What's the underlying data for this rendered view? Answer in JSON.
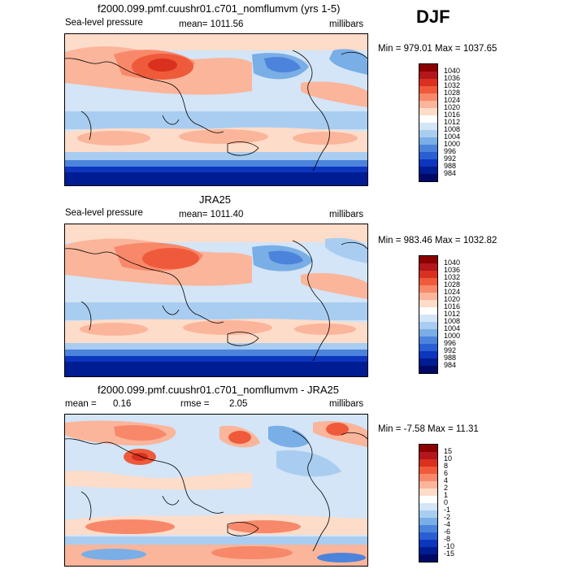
{
  "season": "DJF",
  "panels": [
    {
      "title": "f2000.099.pmf.cuushr01.c701_nomflumvm (yrs 1-5)",
      "variable": "Sea-level pressure",
      "mean": "mean= 1011.56",
      "units": "millibars",
      "minmax": "Min = 979.01 Max = 1037.65"
    },
    {
      "title": "JRA25",
      "variable": "Sea-level pressure",
      "mean": "mean= 1011.40",
      "units": "millibars",
      "minmax": "Min = 983.46 Max = 1032.82"
    },
    {
      "title": "f2000.099.pmf.cuushr01.c701_nomflumvm - JRA25",
      "mean_label": "mean =",
      "mean_value": "0.16",
      "rmse_label": "rmse =",
      "rmse_value": "2.05",
      "units": "millibars",
      "minmax": "Min =  -7.58 Max =  11.31"
    }
  ],
  "colorbar_slp": {
    "labels": [
      "1040",
      "1036",
      "1032",
      "1028",
      "1024",
      "1020",
      "1016",
      "1012",
      "1008",
      "1004",
      "1000",
      "996",
      "992",
      "988",
      "984"
    ],
    "colors": [
      "#8b0000",
      "#b3161b",
      "#d9301f",
      "#ef5a3a",
      "#f8886a",
      "#fbb59b",
      "#fddcc9",
      "#ffffff",
      "#d3e5f7",
      "#a9cdf0",
      "#79aee6",
      "#4c84dc",
      "#2a5fd4",
      "#0d36be",
      "#001c92",
      "#000a66"
    ]
  },
  "colorbar_diff": {
    "labels": [
      "15",
      "10",
      "8",
      "6",
      "4",
      "2",
      "1",
      "0",
      "-1",
      "-2",
      "-4",
      "-6",
      "-8",
      "-10",
      "-15"
    ],
    "colors": [
      "#8b0000",
      "#b3161b",
      "#d9301f",
      "#ef5a3a",
      "#f8886a",
      "#fbb59b",
      "#fddcc9",
      "#ffffff",
      "#d3e5f7",
      "#a9cdf0",
      "#79aee6",
      "#4c84dc",
      "#2a5fd4",
      "#0d36be",
      "#001c92",
      "#000a66"
    ]
  }
}
